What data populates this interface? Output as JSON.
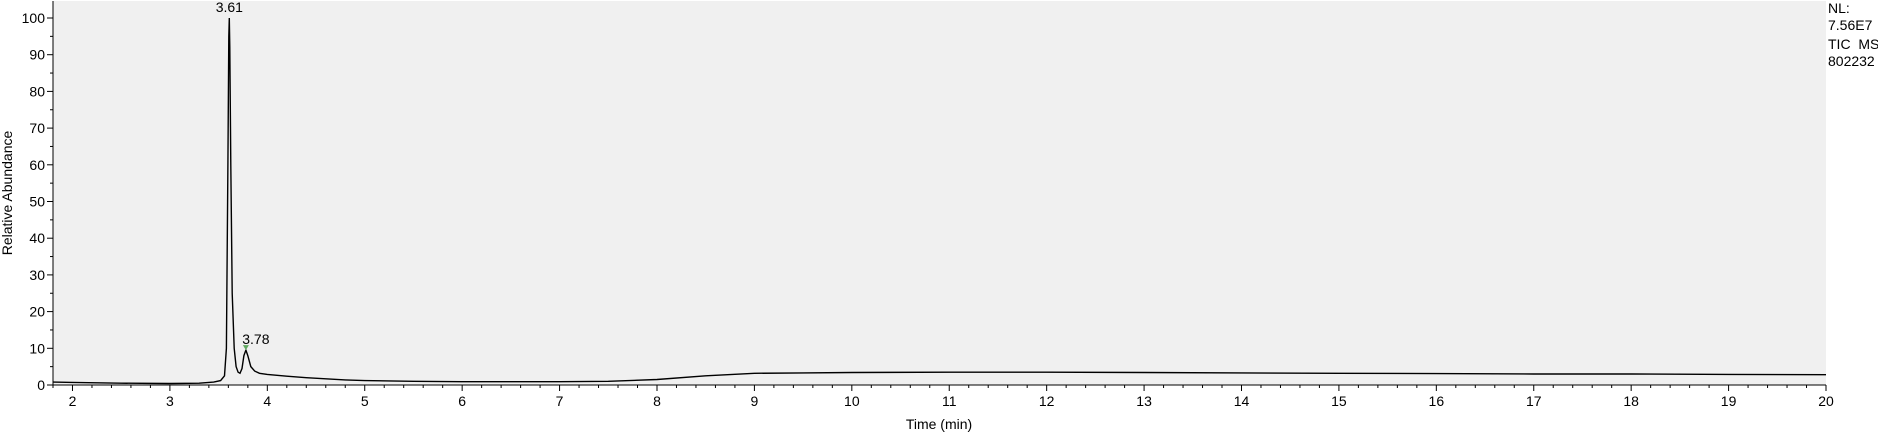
{
  "header": {
    "nl_label": "NL:",
    "nl_value": "7.56E7",
    "trace_label": "TIC  MS",
    "sample_id": "802232"
  },
  "chart_data": {
    "type": "line",
    "title": "",
    "xlabel": "Time (min)",
    "ylabel": "Relative Abundance",
    "xlim": [
      1.8,
      20.0
    ],
    "ylim": [
      0,
      100
    ],
    "x_ticks": [
      2,
      3,
      4,
      5,
      6,
      7,
      8,
      9,
      10,
      11,
      12,
      13,
      14,
      15,
      16,
      17,
      18,
      19,
      20
    ],
    "y_ticks": [
      0,
      10,
      20,
      30,
      40,
      50,
      60,
      70,
      80,
      90,
      100
    ],
    "grid": false,
    "background_color": "#f0f0f0",
    "line_color": "#000000",
    "marker_color": "#5fa85f",
    "peak_labels": [
      {
        "x": 3.61,
        "y": 100,
        "text": "3.61"
      },
      {
        "x": 3.78,
        "y": 9.5,
        "text": "3.78"
      }
    ],
    "series": [
      {
        "x": [
          1.8,
          2.0,
          2.5,
          3.0,
          3.3,
          3.45,
          3.52,
          3.56,
          3.58,
          3.595,
          3.605,
          3.61,
          3.615,
          3.625,
          3.64,
          3.66,
          3.68,
          3.7,
          3.72,
          3.74,
          3.76,
          3.78,
          3.8,
          3.83,
          3.87,
          3.92,
          4.0,
          4.2,
          4.4,
          4.6,
          4.8,
          5.0,
          5.5,
          6.0,
          6.5,
          7.0,
          7.5,
          8.0,
          8.5,
          9.0,
          9.5,
          10.0,
          11.0,
          12.0,
          13.0,
          14.0,
          15.0,
          16.0,
          17.0,
          18.0,
          19.0,
          20.0
        ],
        "y": [
          0.8,
          0.7,
          0.5,
          0.4,
          0.5,
          0.8,
          1.2,
          2.5,
          10,
          60,
          95,
          100,
          92,
          60,
          25,
          10,
          5,
          3.5,
          3.2,
          4.5,
          8,
          9.5,
          8,
          5,
          3.8,
          3.2,
          2.9,
          2.4,
          2.0,
          1.7,
          1.4,
          1.2,
          1.0,
          0.9,
          0.9,
          0.9,
          1.0,
          1.5,
          2.5,
          3.2,
          3.3,
          3.4,
          3.5,
          3.5,
          3.4,
          3.3,
          3.2,
          3.1,
          3.0,
          3.0,
          2.9,
          2.8
        ]
      }
    ]
  }
}
